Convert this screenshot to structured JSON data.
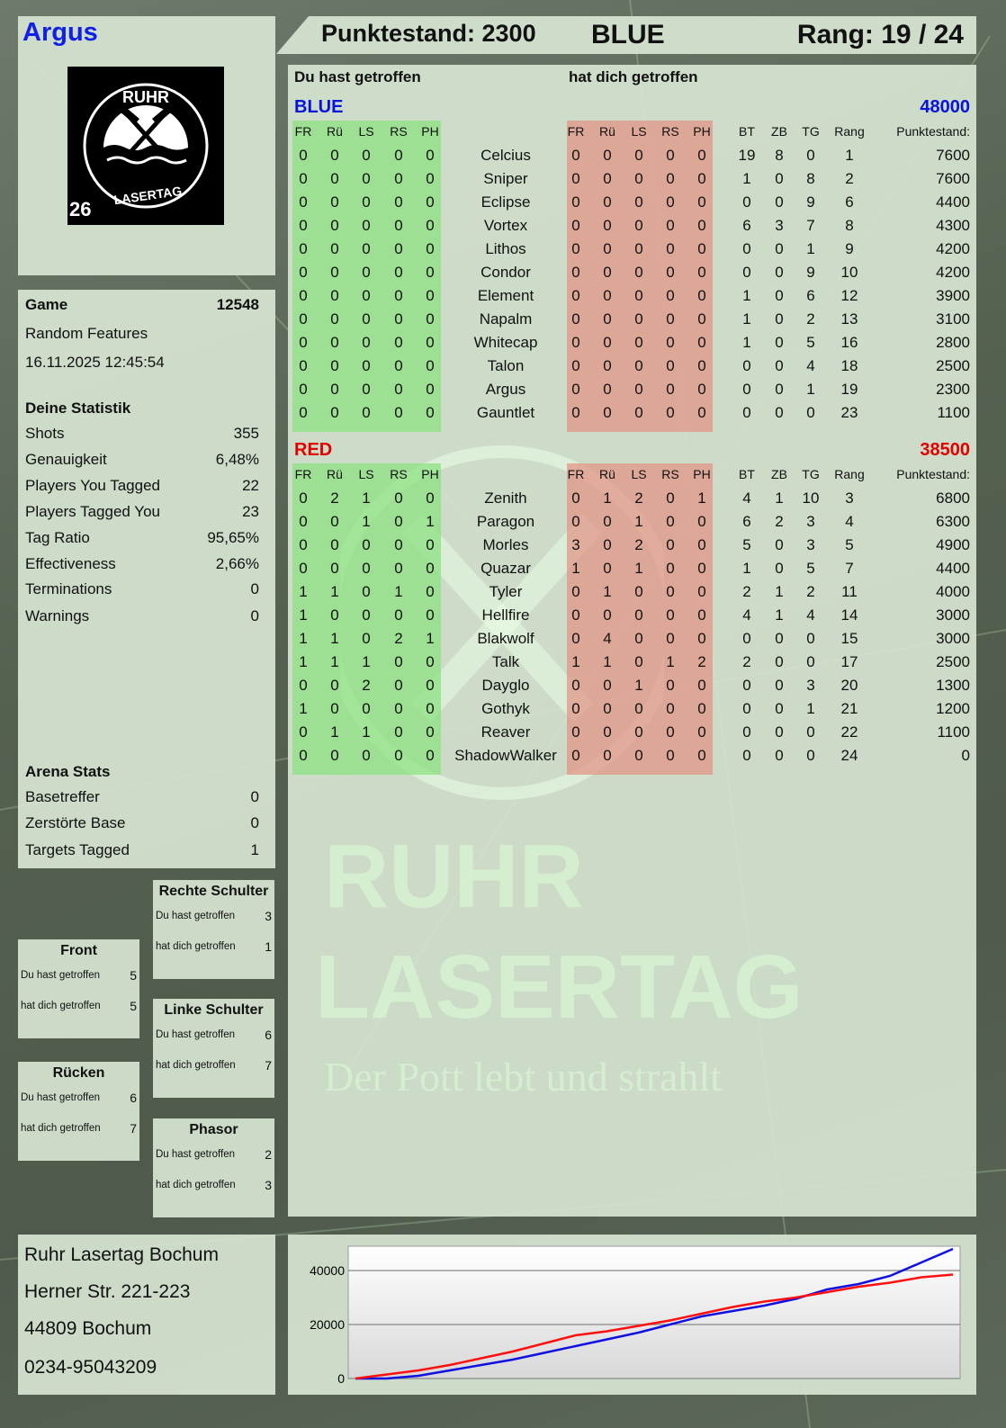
{
  "player": {
    "name": "Argus",
    "logo_text": [
      "RUHR",
      "LASERTAG"
    ],
    "logo_number": "26"
  },
  "header": {
    "score_label": "Punktestand: 2300",
    "team": "BLUE",
    "rank_label": "Rang: 19 / 24"
  },
  "game": {
    "label": "Game",
    "id": "12548",
    "mode": "Random Features",
    "datetime": "16.11.2025 12:45:54"
  },
  "stats": {
    "title": "Deine Statistik",
    "items": [
      {
        "label": "Shots",
        "value": "355"
      },
      {
        "label": "Genauigkeit",
        "value": "6,48%"
      },
      {
        "label": "Players You Tagged",
        "value": "22"
      },
      {
        "label": "Players Tagged You",
        "value": "23"
      },
      {
        "label": "Tag Ratio",
        "value": "95,65%"
      },
      {
        "label": "Effectiveness",
        "value": "2,66%"
      },
      {
        "label": "Terminations",
        "value": "0"
      },
      {
        "label": "Warnings",
        "value": "0"
      }
    ]
  },
  "arena": {
    "title": "Arena Stats",
    "items": [
      {
        "label": "Basetreffer",
        "value": "0"
      },
      {
        "label": "Zerstörte Base",
        "value": "0"
      },
      {
        "label": "Targets Tagged",
        "value": "1"
      }
    ]
  },
  "zones": [
    {
      "title": "Rechte Schulter",
      "hit_label": "Du hast getroffen",
      "hit": "3",
      "got_label": "hat dich getroffen",
      "got": "1"
    },
    {
      "title": "Front",
      "hit_label": "Du hast getroffen",
      "hit": "5",
      "got_label": "hat dich getroffen",
      "got": "5"
    },
    {
      "title": "Linke Schulter",
      "hit_label": "Du hast getroffen",
      "hit": "6",
      "got_label": "hat dich getroffen",
      "got": "7"
    },
    {
      "title": "Rücken",
      "hit_label": "Du hast getroffen",
      "hit": "6",
      "got_label": "hat dich getroffen",
      "got": "7"
    },
    {
      "title": "Phasor",
      "hit_label": "Du hast getroffen",
      "hit": "2",
      "got_label": "hat dich getroffen",
      "got": "3"
    }
  ],
  "address": [
    "Ruhr Lasertag Bochum",
    "Herner Str. 221-223",
    "44809 Bochum",
    "0234-95043209"
  ],
  "watermark": {
    "line1": "RUHR",
    "line2": "LASERTAG",
    "slogan": "Der Pott lebt und strahlt"
  },
  "table": {
    "you_hit": "Du hast getroffen",
    "hit_you": "hat dich getroffen",
    "zone_cols": [
      "FR",
      "Rü",
      "LS",
      "RS",
      "PH"
    ],
    "stat_cols": [
      "BT",
      "ZB",
      "TG",
      "Rang"
    ],
    "score_col": "Punktestand:",
    "teams": [
      {
        "name": "BLUE",
        "total": "48000",
        "color": "#0a14d8",
        "players": [
          {
            "name": "Celcius",
            "hit": [
              "0",
              "0",
              "0",
              "0",
              "0"
            ],
            "got": [
              "0",
              "0",
              "0",
              "0",
              "0"
            ],
            "stats": [
              "19",
              "8",
              "0",
              "1"
            ],
            "score": "7600"
          },
          {
            "name": "Sniper",
            "hit": [
              "0",
              "0",
              "0",
              "0",
              "0"
            ],
            "got": [
              "0",
              "0",
              "0",
              "0",
              "0"
            ],
            "stats": [
              "1",
              "0",
              "8",
              "2"
            ],
            "score": "7600"
          },
          {
            "name": "Eclipse",
            "hit": [
              "0",
              "0",
              "0",
              "0",
              "0"
            ],
            "got": [
              "0",
              "0",
              "0",
              "0",
              "0"
            ],
            "stats": [
              "0",
              "0",
              "9",
              "6"
            ],
            "score": "4400"
          },
          {
            "name": "Vortex",
            "hit": [
              "0",
              "0",
              "0",
              "0",
              "0"
            ],
            "got": [
              "0",
              "0",
              "0",
              "0",
              "0"
            ],
            "stats": [
              "6",
              "3",
              "7",
              "8"
            ],
            "score": "4300"
          },
          {
            "name": "Lithos",
            "hit": [
              "0",
              "0",
              "0",
              "0",
              "0"
            ],
            "got": [
              "0",
              "0",
              "0",
              "0",
              "0"
            ],
            "stats": [
              "0",
              "0",
              "1",
              "9"
            ],
            "score": "4200"
          },
          {
            "name": "Condor",
            "hit": [
              "0",
              "0",
              "0",
              "0",
              "0"
            ],
            "got": [
              "0",
              "0",
              "0",
              "0",
              "0"
            ],
            "stats": [
              "0",
              "0",
              "9",
              "10"
            ],
            "score": "4200"
          },
          {
            "name": "Element",
            "hit": [
              "0",
              "0",
              "0",
              "0",
              "0"
            ],
            "got": [
              "0",
              "0",
              "0",
              "0",
              "0"
            ],
            "stats": [
              "1",
              "0",
              "6",
              "12"
            ],
            "score": "3900"
          },
          {
            "name": "Napalm",
            "hit": [
              "0",
              "0",
              "0",
              "0",
              "0"
            ],
            "got": [
              "0",
              "0",
              "0",
              "0",
              "0"
            ],
            "stats": [
              "1",
              "0",
              "2",
              "13"
            ],
            "score": "3100"
          },
          {
            "name": "Whitecap",
            "hit": [
              "0",
              "0",
              "0",
              "0",
              "0"
            ],
            "got": [
              "0",
              "0",
              "0",
              "0",
              "0"
            ],
            "stats": [
              "1",
              "0",
              "5",
              "16"
            ],
            "score": "2800"
          },
          {
            "name": "Talon",
            "hit": [
              "0",
              "0",
              "0",
              "0",
              "0"
            ],
            "got": [
              "0",
              "0",
              "0",
              "0",
              "0"
            ],
            "stats": [
              "0",
              "0",
              "4",
              "18"
            ],
            "score": "2500"
          },
          {
            "name": "Argus",
            "hit": [
              "0",
              "0",
              "0",
              "0",
              "0"
            ],
            "got": [
              "0",
              "0",
              "0",
              "0",
              "0"
            ],
            "stats": [
              "0",
              "0",
              "1",
              "19"
            ],
            "score": "2300"
          },
          {
            "name": "Gauntlet",
            "hit": [
              "0",
              "0",
              "0",
              "0",
              "0"
            ],
            "got": [
              "0",
              "0",
              "0",
              "0",
              "0"
            ],
            "stats": [
              "0",
              "0",
              "0",
              "23"
            ],
            "score": "1100"
          }
        ]
      },
      {
        "name": "RED",
        "total": "38500",
        "color": "#e00000",
        "players": [
          {
            "name": "Zenith",
            "hit": [
              "0",
              "2",
              "1",
              "0",
              "0"
            ],
            "got": [
              "0",
              "1",
              "2",
              "0",
              "1"
            ],
            "stats": [
              "4",
              "1",
              "10",
              "3"
            ],
            "score": "6800"
          },
          {
            "name": "Paragon",
            "hit": [
              "0",
              "0",
              "1",
              "0",
              "1"
            ],
            "got": [
              "0",
              "0",
              "1",
              "0",
              "0"
            ],
            "stats": [
              "6",
              "2",
              "3",
              "4"
            ],
            "score": "6300"
          },
          {
            "name": "Morles",
            "hit": [
              "0",
              "0",
              "0",
              "0",
              "0"
            ],
            "got": [
              "3",
              "0",
              "2",
              "0",
              "0"
            ],
            "stats": [
              "5",
              "0",
              "3",
              "5"
            ],
            "score": "4900"
          },
          {
            "name": "Quazar",
            "hit": [
              "0",
              "0",
              "0",
              "0",
              "0"
            ],
            "got": [
              "1",
              "0",
              "1",
              "0",
              "0"
            ],
            "stats": [
              "1",
              "0",
              "5",
              "7"
            ],
            "score": "4400"
          },
          {
            "name": "Tyler",
            "hit": [
              "1",
              "1",
              "0",
              "1",
              "0"
            ],
            "got": [
              "0",
              "1",
              "0",
              "0",
              "0"
            ],
            "stats": [
              "2",
              "1",
              "2",
              "11"
            ],
            "score": "4000"
          },
          {
            "name": "Hellfire",
            "hit": [
              "1",
              "0",
              "0",
              "0",
              "0"
            ],
            "got": [
              "0",
              "0",
              "0",
              "0",
              "0"
            ],
            "stats": [
              "4",
              "1",
              "4",
              "14"
            ],
            "score": "3000"
          },
          {
            "name": "Blakwolf",
            "hit": [
              "1",
              "1",
              "0",
              "2",
              "1"
            ],
            "got": [
              "0",
              "4",
              "0",
              "0",
              "0"
            ],
            "stats": [
              "0",
              "0",
              "0",
              "15"
            ],
            "score": "3000"
          },
          {
            "name": "Talk",
            "hit": [
              "1",
              "1",
              "1",
              "0",
              "0"
            ],
            "got": [
              "1",
              "1",
              "0",
              "1",
              "2"
            ],
            "stats": [
              "2",
              "0",
              "0",
              "17"
            ],
            "score": "2500"
          },
          {
            "name": "Dayglo",
            "hit": [
              "0",
              "0",
              "2",
              "0",
              "0"
            ],
            "got": [
              "0",
              "0",
              "1",
              "0",
              "0"
            ],
            "stats": [
              "0",
              "0",
              "3",
              "20"
            ],
            "score": "1300"
          },
          {
            "name": "Gothyk",
            "hit": [
              "1",
              "0",
              "0",
              "0",
              "0"
            ],
            "got": [
              "0",
              "0",
              "0",
              "0",
              "0"
            ],
            "stats": [
              "0",
              "0",
              "1",
              "21"
            ],
            "score": "1200"
          },
          {
            "name": "Reaver",
            "hit": [
              "0",
              "1",
              "1",
              "0",
              "0"
            ],
            "got": [
              "0",
              "0",
              "0",
              "0",
              "0"
            ],
            "stats": [
              "0",
              "0",
              "0",
              "22"
            ],
            "score": "1100"
          },
          {
            "name": "ShadowWalker",
            "hit": [
              "0",
              "0",
              "0",
              "0",
              "0"
            ],
            "got": [
              "0",
              "0",
              "0",
              "0",
              "0"
            ],
            "stats": [
              "0",
              "0",
              "0",
              "24"
            ],
            "score": "0"
          }
        ]
      }
    ]
  },
  "chart_data": {
    "type": "line",
    "ylim": [
      0,
      49000
    ],
    "yticks": [
      "0",
      "20000",
      "40000"
    ],
    "grid": true,
    "series": [
      {
        "color": "#1010e0",
        "values": [
          0,
          0,
          1000,
          3000,
          5000,
          7000,
          9500,
          12000,
          14500,
          17000,
          20000,
          23000,
          25000,
          27000,
          29500,
          33000,
          35000,
          38000,
          43000,
          48000
        ]
      },
      {
        "color": "#ff1010",
        "values": [
          0,
          1500,
          3000,
          5000,
          7500,
          10000,
          13000,
          16000,
          17500,
          19500,
          21500,
          24000,
          26500,
          28500,
          30000,
          32000,
          34000,
          35500,
          37500,
          38500
        ]
      }
    ]
  }
}
